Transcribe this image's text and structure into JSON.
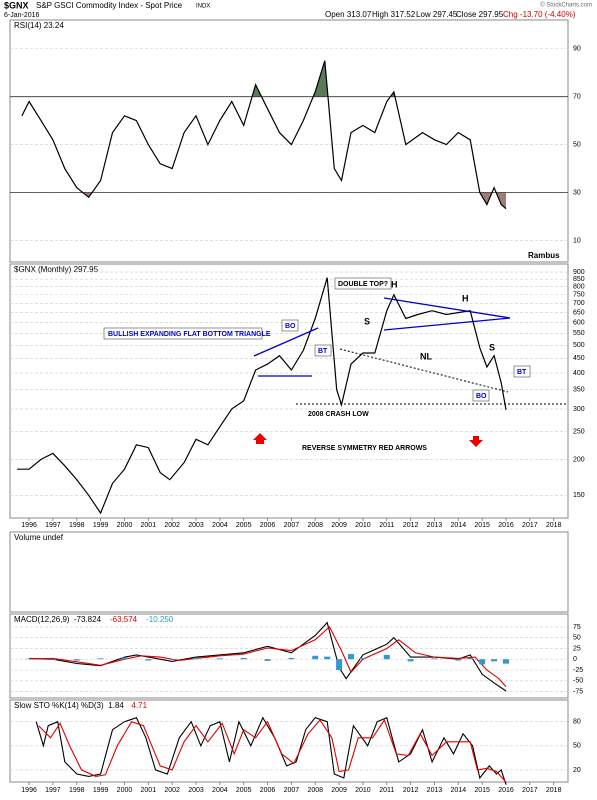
{
  "header": {
    "symbol": "$GNX",
    "name": "S&P GSCI Commodity Index - Spot Price",
    "exchange": "INDX",
    "date": "6-Jan-2016",
    "quote": [
      "Open 313.07",
      "High 317.52",
      "Low 297.45",
      "Close 297.95",
      "Chg -13.70 (-4.40%)"
    ],
    "copyright": "© StockCharts.com"
  },
  "chart_data": [
    {
      "type": "line",
      "title": "RSI(14) 23.24",
      "watermark": "Rambus",
      "color": "#000000",
      "ylim": [
        1,
        102
      ],
      "yticks": [
        10,
        30,
        50,
        70,
        90
      ],
      "xlim": [
        1995.2,
        2018.6
      ],
      "overbought_color": "#5a7a5a",
      "oversold_color": "#a07c78",
      "x": [
        1995.7,
        1996.0,
        1996.5,
        1997.0,
        1997.5,
        1998.0,
        1998.5,
        1999.0,
        1999.5,
        2000.0,
        2000.5,
        2001.0,
        2001.5,
        2002.0,
        2002.5,
        2003.0,
        2003.5,
        2004.0,
        2004.5,
        2005.0,
        2005.5,
        2006.0,
        2006.5,
        2007.0,
        2007.5,
        2008.0,
        2008.4,
        2008.8,
        2009.1,
        2009.5,
        2010.0,
        2010.5,
        2011.0,
        2011.3,
        2011.8,
        2012.5,
        2013.0,
        2013.5,
        2014.0,
        2014.5,
        2014.9,
        2015.2,
        2015.5,
        2015.8,
        2016.0
      ],
      "values": [
        62,
        68,
        60,
        52,
        40,
        32,
        28,
        35,
        55,
        62,
        60,
        50,
        42,
        40,
        55,
        62,
        50,
        60,
        68,
        58,
        75,
        65,
        55,
        50,
        60,
        72,
        85,
        40,
        35,
        55,
        58,
        55,
        68,
        72,
        50,
        55,
        52,
        50,
        55,
        52,
        30,
        25,
        32,
        25,
        23.24
      ]
    },
    {
      "type": "line",
      "title": "$GNX (Monthly) 297.95",
      "log_scale": true,
      "color": "#000000",
      "ylim": [
        125,
        960
      ],
      "yticks": [
        150,
        200,
        250,
        300,
        350,
        400,
        450,
        500,
        550,
        600,
        650,
        700,
        750,
        800,
        850,
        900
      ],
      "xlim": [
        1995.2,
        2018.6
      ],
      "xticks": [
        1996,
        1997,
        1998,
        1999,
        2000,
        2001,
        2002,
        2003,
        2004,
        2005,
        2006,
        2007,
        2008,
        2009,
        2010,
        2011,
        2012,
        2013,
        2014,
        2015,
        2016,
        2017,
        2018
      ],
      "annotations": [
        "BULLISH EXPANDING FLAT BOTTOM TRIANGLE",
        "BO",
        "BT",
        "DOUBLE TOP?",
        "S",
        "H",
        "H",
        "S",
        "NL",
        "BT",
        "BO",
        "2008 CRASH LOW",
        "REVERSE SYMMETRY RED ARROWS"
      ],
      "x": [
        1995.5,
        1996.0,
        1996.5,
        1997.0,
        1997.5,
        1998.0,
        1998.5,
        1999.0,
        1999.5,
        2000.0,
        2000.5,
        2001.0,
        2001.5,
        2001.9,
        2002.5,
        2003.0,
        2003.5,
        2004.0,
        2004.5,
        2005.0,
        2005.5,
        2006.0,
        2006.5,
        2007.0,
        2007.5,
        2008.0,
        2008.5,
        2008.9,
        2009.1,
        2009.5,
        2010.0,
        2010.5,
        2011.0,
        2011.3,
        2011.8,
        2012.3,
        2012.9,
        2013.5,
        2014.0,
        2014.5,
        2014.9,
        2015.2,
        2015.5,
        2015.8,
        2016.0
      ],
      "values": [
        185,
        185,
        200,
        210,
        190,
        170,
        150,
        130,
        165,
        185,
        225,
        220,
        180,
        170,
        195,
        235,
        225,
        260,
        300,
        320,
        410,
        430,
        460,
        410,
        480,
        620,
        860,
        350,
        310,
        430,
        470,
        470,
        660,
        750,
        620,
        640,
        660,
        640,
        650,
        660,
        490,
        420,
        460,
        370,
        297.95
      ]
    },
    {
      "type": "volume",
      "title": "Volume undef"
    },
    {
      "type": "line",
      "title": "MACD(12,26,9)",
      "ylim": [
        -90,
        105
      ],
      "yticks": [
        -75,
        -50,
        -25,
        0,
        25,
        50,
        75
      ],
      "xlim": [
        1995.2,
        2018.6
      ],
      "series": [
        {
          "name": "-73.824",
          "color": "#000000",
          "x": [
            1996,
            1997,
            1998,
            1999,
            2000,
            2000.5,
            2001,
            2002,
            2003,
            2004,
            2005,
            2006,
            2007,
            2008,
            2008.5,
            2009.0,
            2009.3,
            2010,
            2011,
            2011.3,
            2012,
            2013,
            2014,
            2014.5,
            2015.0,
            2015.5,
            2016.0
          ],
          "values": [
            2,
            0,
            -10,
            -15,
            5,
            10,
            5,
            -5,
            5,
            10,
            15,
            30,
            15,
            55,
            85,
            -20,
            -45,
            10,
            35,
            50,
            5,
            5,
            0,
            10,
            -35,
            -55,
            -73.824
          ]
        },
        {
          "name": "-63.574",
          "color": "#dd0000",
          "x": [
            1996,
            1997,
            1998,
            1999,
            2000,
            2000.7,
            2001.5,
            2002.3,
            2003,
            2004,
            2005,
            2006,
            2007,
            2008,
            2008.6,
            2009.1,
            2009.5,
            2010,
            2011,
            2011.5,
            2012.2,
            2013,
            2014,
            2014.7,
            2015.2,
            2015.7,
            2016.0
          ],
          "values": [
            1,
            2,
            -6,
            -14,
            0,
            8,
            5,
            -3,
            2,
            8,
            12,
            26,
            20,
            45,
            75,
            20,
            -30,
            0,
            25,
            45,
            15,
            5,
            2,
            5,
            -25,
            -45,
            -63.574
          ]
        },
        {
          "name": "-10.250",
          "color": "#3399cc",
          "chart": "bar",
          "x": [
            1996,
            1997,
            1998,
            1999,
            2000,
            2001,
            2002,
            2003,
            2004,
            2005,
            2006,
            2007,
            2008,
            2008.5,
            2009.0,
            2009.5,
            2010,
            2011,
            2012,
            2013,
            2014,
            2014.5,
            2015,
            2015.5,
            2016
          ],
          "values": [
            1,
            -2,
            -3,
            2,
            4,
            -3,
            0,
            3,
            2,
            3,
            -4,
            3,
            8,
            6,
            -25,
            12,
            3,
            10,
            -5,
            2,
            -3,
            3,
            -12,
            -5,
            -10.25
          ]
        }
      ]
    },
    {
      "type": "line",
      "title": "Slow STO %K(14) %D(3)",
      "ylim": [
        5,
        107
      ],
      "yticks": [
        20,
        50,
        80
      ],
      "xlim": [
        1995.2,
        2018.6
      ],
      "xticks": [
        1996,
        1997,
        1998,
        1999,
        2000,
        2001,
        2002,
        2003,
        2004,
        2005,
        2006,
        2007,
        2008,
        2009,
        2010,
        2011,
        2012,
        2013,
        2014,
        2015,
        2016,
        2017,
        2018
      ],
      "series": [
        {
          "name": "1.84",
          "color": "#000000",
          "x": [
            1996.3,
            1996.6,
            1996.8,
            1997.2,
            1997.5,
            1998,
            1998.5,
            1999,
            1999.5,
            2000,
            2000.5,
            2000.9,
            2001.3,
            2001.8,
            2002.3,
            2002.8,
            2003.2,
            2003.6,
            2004,
            2004.4,
            2004.8,
            2005.3,
            2005.8,
            2006.3,
            2006.8,
            2007.2,
            2007.6,
            2008,
            2008.5,
            2008.8,
            2009.2,
            2009.6,
            2010.2,
            2010.6,
            2011,
            2011.5,
            2012,
            2012.5,
            2012.9,
            2013.4,
            2013.8,
            2014.2,
            2014.6,
            2014.9,
            2015.3,
            2015.6,
            2015.8,
            2016
          ],
          "values": [
            80,
            50,
            75,
            80,
            30,
            15,
            12,
            15,
            70,
            80,
            85,
            60,
            20,
            15,
            60,
            80,
            50,
            75,
            80,
            30,
            80,
            50,
            85,
            60,
            25,
            30,
            70,
            85,
            80,
            15,
            10,
            75,
            50,
            80,
            85,
            30,
            40,
            70,
            30,
            60,
            40,
            65,
            50,
            10,
            25,
            15,
            20,
            1.84
          ]
        },
        {
          "name": "4.71",
          "color": "#dd0000",
          "x": [
            1996.4,
            1996.9,
            1997.3,
            1997.7,
            1998.2,
            1998.8,
            1999.2,
            1999.7,
            2000.3,
            2000.8,
            2001.5,
            2002.0,
            2002.5,
            2003.0,
            2003.5,
            2004.1,
            2004.6,
            2005.0,
            2005.5,
            2006.0,
            2006.6,
            2007.1,
            2007.7,
            2008.2,
            2008.7,
            2009.0,
            2009.4,
            2009.8,
            2010.4,
            2010.9,
            2011.4,
            2011.9,
            2012.4,
            2012.9,
            2013.5,
            2014.0,
            2014.5,
            2014.8,
            2015.2,
            2015.6,
            2016
          ],
          "values": [
            75,
            60,
            78,
            50,
            20,
            12,
            14,
            50,
            80,
            75,
            25,
            20,
            55,
            75,
            55,
            78,
            40,
            70,
            60,
            80,
            40,
            28,
            65,
            82,
            60,
            18,
            20,
            60,
            60,
            82,
            40,
            38,
            65,
            38,
            55,
            55,
            55,
            20,
            22,
            18,
            4.71
          ]
        }
      ]
    }
  ]
}
